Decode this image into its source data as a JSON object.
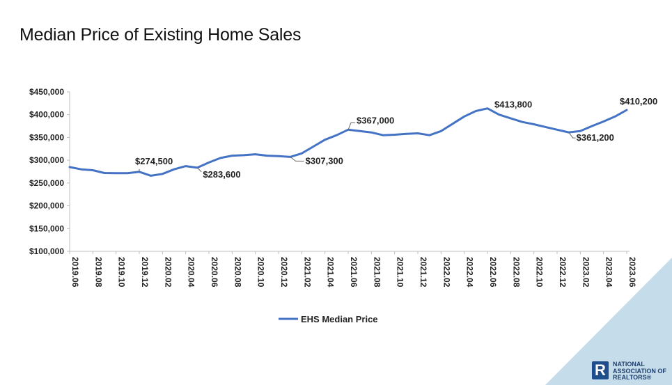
{
  "title": "Median Price of Existing Home Sales",
  "colors": {
    "line": "#4472c4",
    "corner": "#c5dcea"
  },
  "chart_data": {
    "type": "line",
    "title": "Median Price of Existing Home Sales",
    "ylim": [
      100000,
      450000
    ],
    "y_ticks": [
      "$100,000",
      "$150,000",
      "$200,000",
      "$250,000",
      "$300,000",
      "$350,000",
      "$400,000",
      "$450,000"
    ],
    "x_tick_labels": [
      "2019.06",
      "2019.08",
      "2019.10",
      "2019.12",
      "2020.02",
      "2020.04",
      "2020.06",
      "2020.08",
      "2020.10",
      "2020.12",
      "2021.02",
      "2021.04",
      "2021.06",
      "2021.08",
      "2021.10",
      "2021.12",
      "2022.02",
      "2022.04",
      "2022.06",
      "2022.08",
      "2022.10",
      "2022.12",
      "2023.02",
      "2023.04",
      "2023.06"
    ],
    "x": [
      "2019.06",
      "2019.07",
      "2019.08",
      "2019.09",
      "2019.10",
      "2019.11",
      "2019.12",
      "2020.01",
      "2020.02",
      "2020.03",
      "2020.04",
      "2020.05",
      "2020.06",
      "2020.07",
      "2020.08",
      "2020.09",
      "2020.10",
      "2020.11",
      "2020.12",
      "2021.01",
      "2021.02",
      "2021.03",
      "2021.04",
      "2021.05",
      "2021.06",
      "2021.07",
      "2021.08",
      "2021.09",
      "2021.10",
      "2021.11",
      "2021.12",
      "2022.01",
      "2022.02",
      "2022.03",
      "2022.04",
      "2022.05",
      "2022.06",
      "2022.07",
      "2022.08",
      "2022.09",
      "2022.10",
      "2022.11",
      "2022.12",
      "2023.01",
      "2023.02",
      "2023.03",
      "2023.04",
      "2023.05",
      "2023.06"
    ],
    "series": [
      {
        "name": "EHS Median Price",
        "values": [
          285000,
          280000,
          278000,
          272000,
          271500,
          271500,
          274500,
          266000,
          270000,
          280000,
          287000,
          283600,
          295000,
          305000,
          310000,
          311000,
          313000,
          310000,
          309000,
          307300,
          315000,
          330000,
          345000,
          355000,
          367000,
          364000,
          361000,
          355000,
          356000,
          358000,
          359000,
          355000,
          364000,
          380000,
          396000,
          408000,
          413800,
          400000,
          392000,
          384000,
          379000,
          373000,
          367000,
          361200,
          364000,
          375000,
          385000,
          396000,
          410200
        ]
      }
    ],
    "annotations": [
      {
        "index": 6,
        "label": "$274,500"
      },
      {
        "index": 11,
        "label": "$283,600"
      },
      {
        "index": 19,
        "label": "$307,300"
      },
      {
        "index": 24,
        "label": "$367,000"
      },
      {
        "index": 36,
        "label": "$413,800"
      },
      {
        "index": 43,
        "label": "$361,200"
      },
      {
        "index": 48,
        "label": "$410,200"
      }
    ],
    "legend": {
      "position": "bottom",
      "label": "EHS Median Price"
    },
    "grid": false
  },
  "logo": {
    "line1": "NATIONAL",
    "line2": "ASSOCIATION OF",
    "line3": "REALTORS®"
  }
}
